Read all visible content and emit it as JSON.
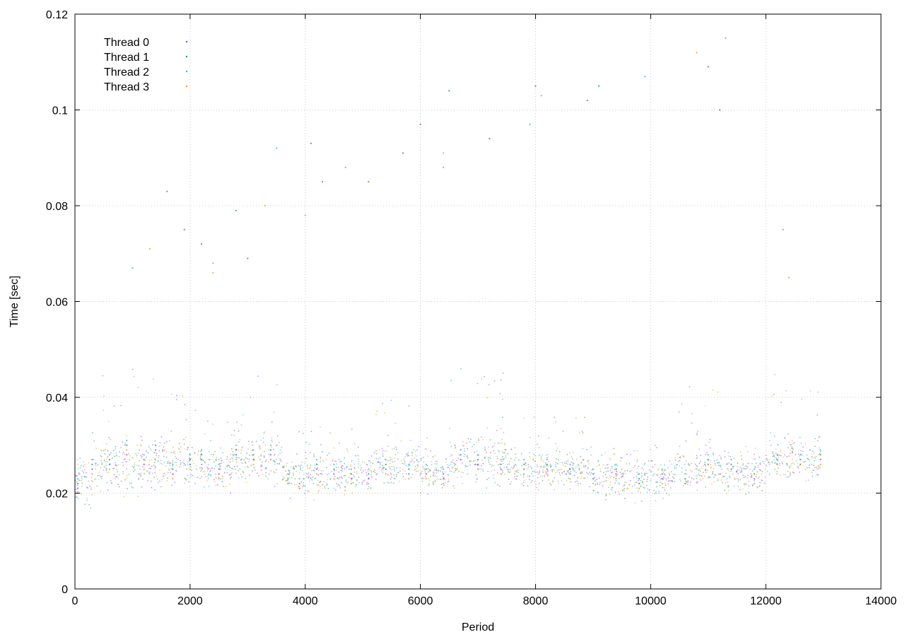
{
  "chart_data": {
    "type": "scatter",
    "title": "",
    "xlabel": "Period",
    "ylabel": "Time [sec]",
    "xlim": [
      0,
      14000
    ],
    "ylim": [
      0,
      0.12
    ],
    "xticks": [
      0,
      2000,
      4000,
      6000,
      8000,
      10000,
      12000,
      14000
    ],
    "xtick_labels": [
      "0",
      "2000",
      "4000",
      "6000",
      "8000",
      "10000",
      "12000",
      "14000"
    ],
    "yticks": [
      0,
      0.02,
      0.04,
      0.06,
      0.08,
      0.1,
      0.12
    ],
    "ytick_labels": [
      "0",
      "0.02",
      "0.04",
      "0.06",
      "0.08",
      "0.1",
      "0.12"
    ],
    "grid": true,
    "legend_position": "top-left",
    "series": [
      {
        "name": "Thread 0",
        "color": "#9a3fe0",
        "points": [
          [
            50,
            0.021
          ],
          [
            300,
            0.025
          ],
          [
            600,
            0.026
          ],
          [
            900,
            0.028
          ],
          [
            1200,
            0.026
          ],
          [
            1400,
            0.03
          ],
          [
            1700,
            0.024
          ],
          [
            2000,
            0.026
          ],
          [
            2200,
            0.027
          ],
          [
            2500,
            0.024
          ],
          [
            2800,
            0.028
          ],
          [
            3100,
            0.027
          ],
          [
            3400,
            0.028
          ],
          [
            3700,
            0.022
          ],
          [
            3900,
            0.021
          ],
          [
            4200,
            0.025
          ],
          [
            4500,
            0.024
          ],
          [
            4800,
            0.023
          ],
          [
            5100,
            0.023
          ],
          [
            5400,
            0.025
          ],
          [
            5800,
            0.024
          ],
          [
            6100,
            0.024
          ],
          [
            6400,
            0.023
          ],
          [
            6700,
            0.027
          ],
          [
            7000,
            0.026
          ],
          [
            7400,
            0.025
          ],
          [
            7800,
            0.025
          ],
          [
            8200,
            0.025
          ],
          [
            8600,
            0.024
          ],
          [
            9000,
            0.023
          ],
          [
            9400,
            0.024
          ],
          [
            9800,
            0.022
          ],
          [
            10200,
            0.023
          ],
          [
            10600,
            0.022
          ],
          [
            11000,
            0.026
          ],
          [
            11400,
            0.025
          ],
          [
            11800,
            0.023
          ],
          [
            12200,
            0.026
          ],
          [
            12600,
            0.026
          ],
          [
            12950,
            0.027
          ],
          [
            1600,
            0.083
          ],
          [
            2200,
            0.072
          ],
          [
            3000,
            0.069
          ],
          [
            4300,
            0.085
          ],
          [
            5100,
            0.085
          ],
          [
            6000,
            0.097
          ],
          [
            7200,
            0.094
          ],
          [
            8900,
            0.102
          ],
          [
            11000,
            0.109
          ],
          [
            11200,
            0.1
          ]
        ]
      },
      {
        "name": "Thread 1",
        "color": "#1a9e50",
        "points": [
          [
            50,
            0.022
          ],
          [
            300,
            0.026
          ],
          [
            600,
            0.027
          ],
          [
            900,
            0.03
          ],
          [
            1200,
            0.027
          ],
          [
            1400,
            0.029
          ],
          [
            1700,
            0.025
          ],
          [
            2000,
            0.027
          ],
          [
            2200,
            0.028
          ],
          [
            2500,
            0.025
          ],
          [
            2800,
            0.029
          ],
          [
            3100,
            0.028
          ],
          [
            3400,
            0.029
          ],
          [
            3700,
            0.023
          ],
          [
            3900,
            0.022
          ],
          [
            4200,
            0.026
          ],
          [
            4500,
            0.025
          ],
          [
            4800,
            0.024
          ],
          [
            5100,
            0.024
          ],
          [
            5400,
            0.026
          ],
          [
            5800,
            0.025
          ],
          [
            6100,
            0.025
          ],
          [
            6400,
            0.024
          ],
          [
            6700,
            0.028
          ],
          [
            7000,
            0.027
          ],
          [
            7400,
            0.026
          ],
          [
            7800,
            0.026
          ],
          [
            8200,
            0.026
          ],
          [
            8600,
            0.025
          ],
          [
            9000,
            0.024
          ],
          [
            9400,
            0.025
          ],
          [
            9800,
            0.023
          ],
          [
            10200,
            0.024
          ],
          [
            10600,
            0.023
          ],
          [
            11000,
            0.027
          ],
          [
            11400,
            0.026
          ],
          [
            11800,
            0.024
          ],
          [
            12200,
            0.027
          ],
          [
            12600,
            0.027
          ],
          [
            12950,
            0.028
          ],
          [
            1900,
            0.075
          ],
          [
            2800,
            0.079
          ],
          [
            4100,
            0.093
          ],
          [
            5700,
            0.091
          ],
          [
            6500,
            0.104
          ],
          [
            8000,
            0.105
          ],
          [
            9100,
            0.105
          ]
        ]
      },
      {
        "name": "Thread 2",
        "color": "#3ab0e0",
        "points": [
          [
            50,
            0.023
          ],
          [
            300,
            0.027
          ],
          [
            600,
            0.028
          ],
          [
            900,
            0.031
          ],
          [
            1200,
            0.028
          ],
          [
            1400,
            0.03
          ],
          [
            1700,
            0.026
          ],
          [
            2000,
            0.028
          ],
          [
            2200,
            0.029
          ],
          [
            2500,
            0.026
          ],
          [
            2800,
            0.03
          ],
          [
            3100,
            0.029
          ],
          [
            3400,
            0.03
          ],
          [
            3700,
            0.024
          ],
          [
            3900,
            0.023
          ],
          [
            4200,
            0.027
          ],
          [
            4500,
            0.026
          ],
          [
            4800,
            0.025
          ],
          [
            5100,
            0.025
          ],
          [
            5400,
            0.027
          ],
          [
            5800,
            0.026
          ],
          [
            6100,
            0.026
          ],
          [
            6400,
            0.025
          ],
          [
            6700,
            0.029
          ],
          [
            7000,
            0.028
          ],
          [
            7400,
            0.027
          ],
          [
            7800,
            0.027
          ],
          [
            8200,
            0.027
          ],
          [
            8600,
            0.026
          ],
          [
            9000,
            0.025
          ],
          [
            9400,
            0.026
          ],
          [
            9800,
            0.024
          ],
          [
            10200,
            0.025
          ],
          [
            10600,
            0.024
          ],
          [
            11000,
            0.028
          ],
          [
            11400,
            0.027
          ],
          [
            11800,
            0.025
          ],
          [
            12200,
            0.028
          ],
          [
            12600,
            0.028
          ],
          [
            12950,
            0.029
          ],
          [
            1000,
            0.067
          ],
          [
            2400,
            0.068
          ],
          [
            3500,
            0.092
          ],
          [
            4700,
            0.088
          ],
          [
            6400,
            0.088
          ],
          [
            7900,
            0.097
          ],
          [
            9900,
            0.107
          ],
          [
            12300,
            0.075
          ]
        ]
      },
      {
        "name": "Thread 3",
        "color": "#e0a020",
        "points": [
          [
            50,
            0.02
          ],
          [
            300,
            0.024
          ],
          [
            600,
            0.025
          ],
          [
            900,
            0.029
          ],
          [
            1200,
            0.025
          ],
          [
            1400,
            0.027
          ],
          [
            1700,
            0.023
          ],
          [
            2000,
            0.025
          ],
          [
            2200,
            0.026
          ],
          [
            2500,
            0.023
          ],
          [
            2800,
            0.027
          ],
          [
            3100,
            0.026
          ],
          [
            3400,
            0.027
          ],
          [
            3700,
            0.022
          ],
          [
            3900,
            0.021
          ],
          [
            4200,
            0.024
          ],
          [
            4500,
            0.023
          ],
          [
            4800,
            0.022
          ],
          [
            5100,
            0.022
          ],
          [
            5400,
            0.024
          ],
          [
            5800,
            0.023
          ],
          [
            6100,
            0.023
          ],
          [
            6400,
            0.022
          ],
          [
            6600,
            0.03
          ],
          [
            7000,
            0.025
          ],
          [
            7400,
            0.024
          ],
          [
            7800,
            0.024
          ],
          [
            8200,
            0.024
          ],
          [
            8600,
            0.023
          ],
          [
            9000,
            0.022
          ],
          [
            9400,
            0.023
          ],
          [
            9800,
            0.021
          ],
          [
            10200,
            0.022
          ],
          [
            10600,
            0.022
          ],
          [
            11000,
            0.026
          ],
          [
            11400,
            0.025
          ],
          [
            11800,
            0.022
          ],
          [
            12200,
            0.026
          ],
          [
            12600,
            0.026
          ],
          [
            12950,
            0.026
          ],
          [
            1300,
            0.071
          ],
          [
            2400,
            0.066
          ],
          [
            3300,
            0.08
          ],
          [
            4000,
            0.078
          ],
          [
            5100,
            0.085
          ],
          [
            6400,
            0.091
          ],
          [
            8100,
            0.103
          ],
          [
            10800,
            0.112
          ],
          [
            11300,
            0.115
          ],
          [
            12400,
            0.065
          ]
        ]
      }
    ],
    "noise_bands": [
      {
        "start": 0,
        "end": 300,
        "center": 0.022,
        "spread": 0.004,
        "top": 0.028
      },
      {
        "start": 300,
        "end": 1500,
        "center": 0.026,
        "spread": 0.004,
        "top": 0.046
      },
      {
        "start": 1500,
        "end": 2200,
        "center": 0.026,
        "spread": 0.003,
        "top": 0.042
      },
      {
        "start": 2200,
        "end": 2700,
        "center": 0.025,
        "spread": 0.003,
        "top": 0.036
      },
      {
        "start": 2700,
        "end": 3600,
        "center": 0.027,
        "spread": 0.004,
        "top": 0.046
      },
      {
        "start": 3600,
        "end": 5200,
        "center": 0.024,
        "spread": 0.003,
        "top": 0.034
      },
      {
        "start": 5200,
        "end": 6000,
        "center": 0.026,
        "spread": 0.003,
        "top": 0.04
      },
      {
        "start": 6000,
        "end": 6500,
        "center": 0.024,
        "spread": 0.003,
        "top": 0.032
      },
      {
        "start": 6500,
        "end": 7500,
        "center": 0.027,
        "spread": 0.004,
        "top": 0.046
      },
      {
        "start": 7500,
        "end": 9000,
        "center": 0.025,
        "spread": 0.003,
        "top": 0.036
      },
      {
        "start": 9000,
        "end": 10400,
        "center": 0.023,
        "spread": 0.003,
        "top": 0.03
      },
      {
        "start": 10400,
        "end": 11200,
        "center": 0.025,
        "spread": 0.003,
        "top": 0.044
      },
      {
        "start": 11200,
        "end": 12000,
        "center": 0.024,
        "spread": 0.003,
        "top": 0.032
      },
      {
        "start": 12000,
        "end": 12960,
        "center": 0.027,
        "spread": 0.003,
        "top": 0.048
      }
    ]
  }
}
